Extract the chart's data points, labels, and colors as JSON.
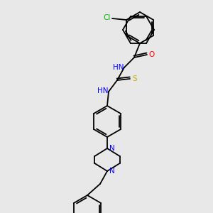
{
  "background_color": "#e8e8e8",
  "bond_color": "#000000",
  "atom_colors": {
    "Cl": "#00bb00",
    "O": "#ff0000",
    "N": "#0000ff",
    "S": "#ccaa00",
    "C": "#000000",
    "H": "#000000"
  },
  "figsize": [
    3.0,
    3.0
  ],
  "dpi": 100
}
